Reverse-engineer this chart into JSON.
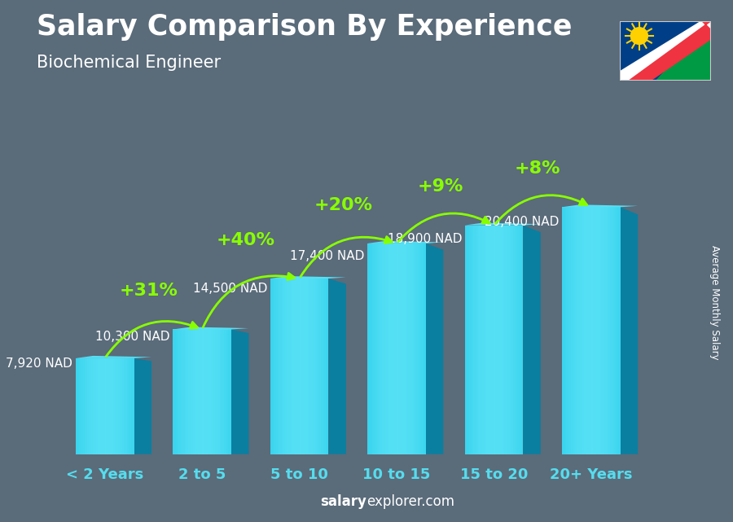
{
  "title": "Salary Comparison By Experience",
  "subtitle": "Biochemical Engineer",
  "categories": [
    "< 2 Years",
    "2 to 5",
    "5 to 10",
    "10 to 15",
    "15 to 20",
    "20+ Years"
  ],
  "values": [
    7920,
    10300,
    14500,
    17400,
    18900,
    20400
  ],
  "labels": [
    "7,920 NAD",
    "10,300 NAD",
    "14,500 NAD",
    "17,400 NAD",
    "18,900 NAD",
    "20,400 NAD"
  ],
  "increases": [
    null,
    "+31%",
    "+40%",
    "+20%",
    "+9%",
    "+8%"
  ],
  "bar_color_front": "#1ec8e8",
  "bar_color_side": "#0a7fa0",
  "bar_color_top": "#55e0f5",
  "bar_color_gradient_left": "#0098bb",
  "bar_color_gradient_right": "#005577",
  "bg_color": "#5a6b7a",
  "title_color": "#ffffff",
  "subtitle_color": "#ffffff",
  "label_color": "#ffffff",
  "increase_color": "#88ff00",
  "xlabel_color": "#55ddee",
  "footer_salary_color": "#ffffff",
  "ylabel_text": "Average Monthly Salary",
  "footer_normal": "explorer.com",
  "footer_bold": "salary",
  "bar_width": 0.6,
  "ylim": [
    0,
    25000
  ],
  "label_fontsize": 11,
  "increase_fontsize": 16,
  "cat_fontsize": 13
}
